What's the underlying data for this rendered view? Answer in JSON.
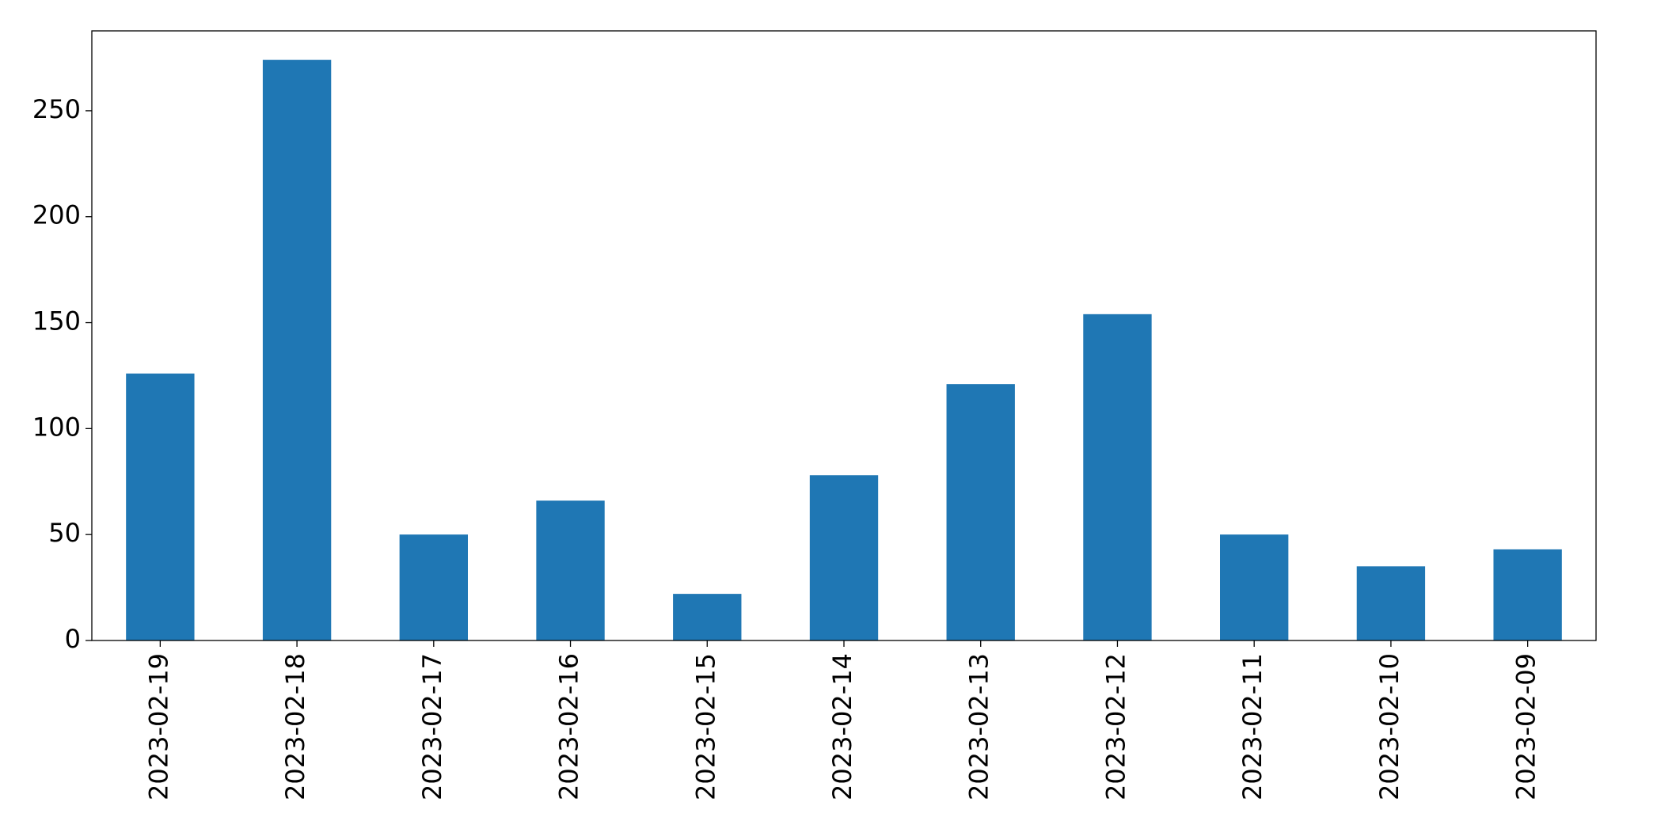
{
  "chart_data": {
    "type": "bar",
    "categories": [
      "2023-02-19",
      "2023-02-18",
      "2023-02-17",
      "2023-02-16",
      "2023-02-15",
      "2023-02-14",
      "2023-02-13",
      "2023-02-12",
      "2023-02-11",
      "2023-02-10",
      "2023-02-09"
    ],
    "values": [
      126,
      274,
      50,
      66,
      22,
      78,
      121,
      154,
      50,
      35,
      43
    ],
    "color": "#1f77b4",
    "ylim": [
      0,
      287.7
    ],
    "yticks": [
      0,
      50,
      100,
      150,
      200,
      250
    ],
    "grid": false
  }
}
